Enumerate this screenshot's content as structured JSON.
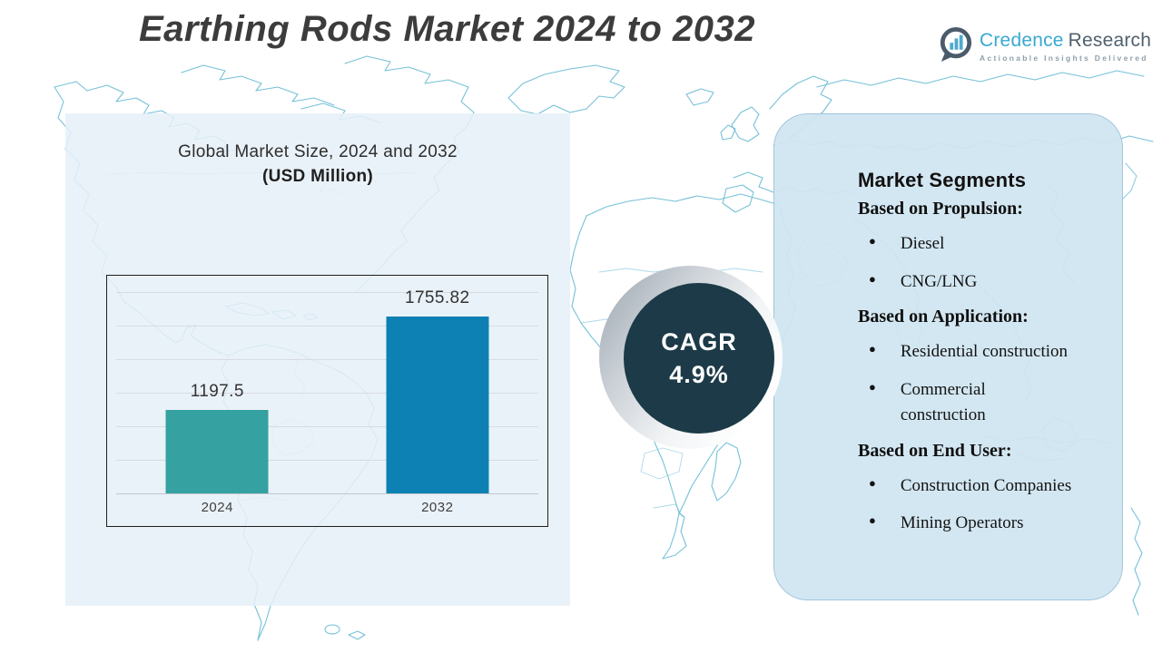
{
  "header": {
    "title": "Earthing Rods Market 2024 to 2032"
  },
  "logo": {
    "primary": "Credence",
    "secondary": "Research",
    "tagline": "Actionable Insights Delivered",
    "icon": "bar-chart-bubble-icon"
  },
  "cagr": {
    "label": "CAGR",
    "value": "4.9%"
  },
  "chart_data": {
    "type": "bar",
    "title": "Global Market Size, 2024 and 2032",
    "subtitle": "(USD Million)",
    "categories": [
      "2024",
      "2032"
    ],
    "values": [
      1197.5,
      1755.82
    ],
    "value_labels": [
      "1197.5",
      "1755.82"
    ],
    "bar_colors": [
      "#35a1a1",
      "#0d81b3"
    ],
    "xlabel": "",
    "ylabel": "",
    "ylim": [
      700,
      1900
    ],
    "gridline_step": 200,
    "grid": "horizontal",
    "legend": "none"
  },
  "segments": {
    "title": "Market Segments",
    "sections": [
      {
        "heading": "Based on Propulsion:",
        "items": [
          "Diesel",
          "CNG/LNG"
        ]
      },
      {
        "heading": "Based on Application:",
        "items": [
          "Residential construction",
          "Commercial construction"
        ]
      },
      {
        "heading": "Based on End User:",
        "items": [
          "Construction Companies",
          "Mining Operators"
        ]
      }
    ]
  },
  "colors": {
    "bar_2024": "#35a1a1",
    "bar_2032": "#0d81b3",
    "cagr_circle": "#1c3a47",
    "left_panel": "#e9f1f8",
    "right_panel": "#d2e5f1",
    "map_stroke": "#76c1d8",
    "title_text": "#3c3c3c",
    "logo_blue": "#3aa9cf",
    "logo_slate": "#51616e"
  }
}
